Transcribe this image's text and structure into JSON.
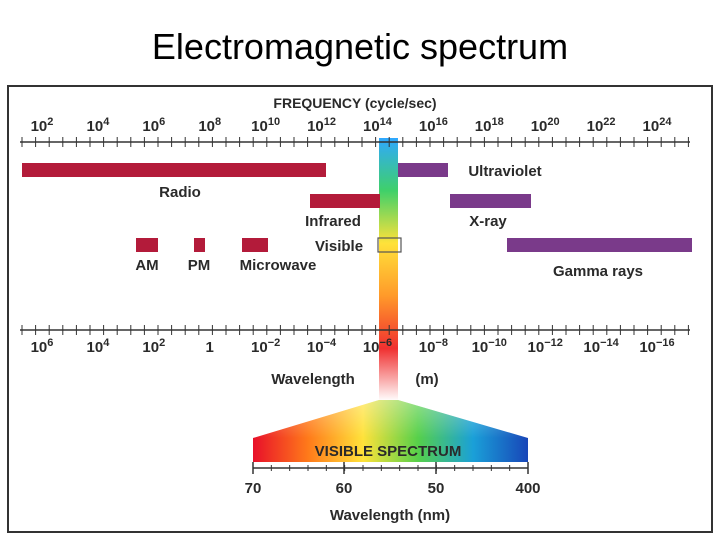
{
  "title": "Electromagnetic spectrum",
  "frequency_axis": {
    "label": "FREQUENCY (cycle/sec)",
    "ticks": [
      {
        "base": "10",
        "exp": "2"
      },
      {
        "base": "10",
        "exp": "4"
      },
      {
        "base": "10",
        "exp": "6"
      },
      {
        "base": "10",
        "exp": "8"
      },
      {
        "base": "10",
        "exp": "10"
      },
      {
        "base": "10",
        "exp": "12"
      },
      {
        "base": "10",
        "exp": "14"
      },
      {
        "base": "10",
        "exp": "16"
      },
      {
        "base": "10",
        "exp": "18"
      },
      {
        "base": "10",
        "exp": "20"
      },
      {
        "base": "10",
        "exp": "22"
      },
      {
        "base": "10",
        "exp": "24"
      }
    ]
  },
  "wavelength_axis": {
    "label": "Wavelength",
    "unit": "(m)",
    "ticks": [
      {
        "base": "10",
        "exp": "6"
      },
      {
        "base": "10",
        "exp": "4"
      },
      {
        "base": "10",
        "exp": "2"
      },
      {
        "base": "1",
        "exp": ""
      },
      {
        "base": "10",
        "exp": "−2"
      },
      {
        "base": "10",
        "exp": "−4"
      },
      {
        "base": "10",
        "exp": "−6"
      },
      {
        "base": "10",
        "exp": "−8"
      },
      {
        "base": "10",
        "exp": "−10"
      },
      {
        "base": "10",
        "exp": "−12"
      },
      {
        "base": "10",
        "exp": "−14"
      },
      {
        "base": "10",
        "exp": "−16"
      }
    ]
  },
  "bands": [
    {
      "name": "Radio",
      "color": "#b31b3a",
      "freq_exp_from": 2,
      "freq_exp_to": 12.5
    },
    {
      "name": "Infrared",
      "color": "#b31b3a",
      "freq_exp_from": 12,
      "freq_exp_to": 14.3
    },
    {
      "name": "Visible",
      "color": "#555555",
      "freq_exp_from": 14.3,
      "freq_exp_to": 14.8
    },
    {
      "name": "AM",
      "color": "#b31b3a",
      "freq_exp_from": 5.7,
      "freq_exp_to": 6.4
    },
    {
      "name": "PM",
      "color": "#b31b3a",
      "freq_exp_from": 8.0,
      "freq_exp_to": 8.4
    },
    {
      "name": "Microwave",
      "color": "#b31b3a",
      "freq_exp_from": 9.2,
      "freq_exp_to": 10.2
    },
    {
      "name": "Ultraviolet",
      "color": "#7a3a8a",
      "freq_exp_from": 14.8,
      "freq_exp_to": 16.6
    },
    {
      "name": "X-ray",
      "color": "#7a3a8a",
      "freq_exp_from": 16.6,
      "freq_exp_to": 19.6
    },
    {
      "name": "Gamma rays",
      "color": "#7a3a8a",
      "freq_exp_from": 19.0,
      "freq_exp_to": 25.0
    }
  ],
  "visible_spectrum": {
    "title": "VISIBLE SPECTRUM",
    "axis_label": "Wavelength (nm)",
    "ticks": [
      "70",
      "60",
      "50",
      "400"
    ]
  },
  "colors": {
    "border": "#333333",
    "axis": "#333333",
    "label": "#2a2a2a",
    "band_red": "#b31b3a",
    "band_purple": "#7a3a8a"
  }
}
